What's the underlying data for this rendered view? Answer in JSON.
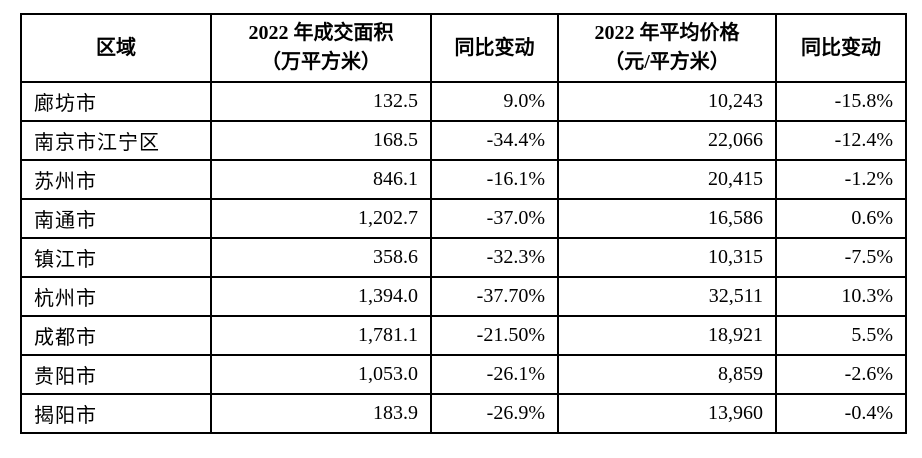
{
  "table": {
    "columns": [
      {
        "id": "region",
        "label": "区域"
      },
      {
        "id": "area",
        "label": "2022 年成交面积\n（万平方米）"
      },
      {
        "id": "area_yoy",
        "label": "同比变动"
      },
      {
        "id": "price",
        "label": "2022 年平均价格\n（元/平方米）"
      },
      {
        "id": "price_yoy",
        "label": "同比变动"
      }
    ],
    "rows": [
      {
        "region": "廊坊市",
        "area": "132.5",
        "area_yoy": "9.0%",
        "price": "10,243",
        "price_yoy": "-15.8%"
      },
      {
        "region": "南京市江宁区",
        "area": "168.5",
        "area_yoy": "-34.4%",
        "price": "22,066",
        "price_yoy": "-12.4%"
      },
      {
        "region": "苏州市",
        "area": "846.1",
        "area_yoy": "-16.1%",
        "price": "20,415",
        "price_yoy": "-1.2%"
      },
      {
        "region": "南通市",
        "area": "1,202.7",
        "area_yoy": "-37.0%",
        "price": "16,586",
        "price_yoy": "0.6%"
      },
      {
        "region": "镇江市",
        "area": "358.6",
        "area_yoy": "-32.3%",
        "price": "10,315",
        "price_yoy": "-7.5%"
      },
      {
        "region": "杭州市",
        "area": "1,394.0",
        "area_yoy": "-37.70%",
        "price": "32,511",
        "price_yoy": "10.3%"
      },
      {
        "region": "成都市",
        "area": "1,781.1",
        "area_yoy": "-21.50%",
        "price": "18,921",
        "price_yoy": "5.5%"
      },
      {
        "region": "贵阳市",
        "area": "1,053.0",
        "area_yoy": "-26.1%",
        "price": "8,859",
        "price_yoy": "-2.6%"
      },
      {
        "region": "揭阳市",
        "area": "183.9",
        "area_yoy": "-26.9%",
        "price": "13,960",
        "price_yoy": "-0.4%"
      }
    ],
    "colors": {
      "border": "#000000",
      "background": "#ffffff",
      "text": "#000000"
    }
  }
}
